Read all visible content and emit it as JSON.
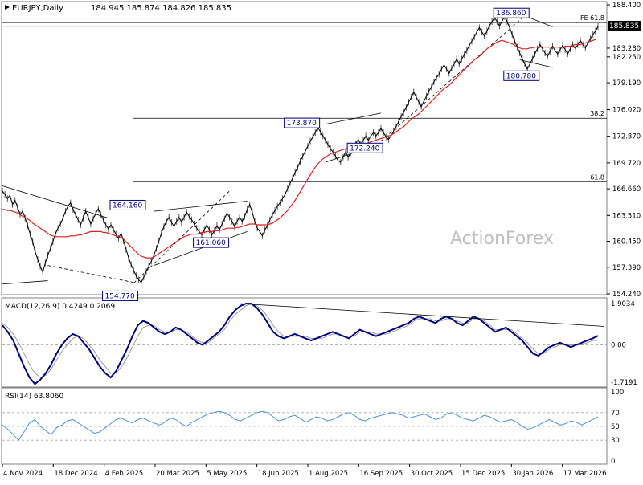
{
  "header": {
    "symbol": "EURJPY,Daily",
    "ohlc": "184.945 185.874 184.826 185.835"
  },
  "watermark": "ActionForex",
  "current_price": "185.835",
  "colors": {
    "price": "#000000",
    "sma": "#dd2222",
    "macd": "#000080",
    "signal": "#9a9a9a",
    "rsi": "#4a90e2",
    "label_border": "#000080",
    "label_text": "#000080",
    "grid": "#c8c8c8",
    "watermark": "#c0c0c0"
  },
  "chart_data": [
    {
      "type": "line",
      "title": "EURJPY,Daily",
      "ylim": [
        154.24,
        188.4
      ],
      "y_ticks": [
        "188.400",
        "185.835",
        "183.280",
        "182.250",
        "179.190",
        "176.020",
        "172.870",
        "169.720",
        "166.660",
        "163.510",
        "160.450",
        "157.390",
        "154.240"
      ],
      "x_ticks": [
        "4 Nov 2024",
        "18 Dec 2024",
        "4 Feb 2025",
        "20 Mar 2025",
        "5 May 2025",
        "18 Jun 2025",
        "1 Aug 2025",
        "16 Sep 2025",
        "30 Oct 2025",
        "15 Dec 2025",
        "30 Jan 2026",
        "17 Mar 2026"
      ],
      "series": [
        {
          "role": "price",
          "values": [
            166.4,
            166.0,
            165.5,
            165.9,
            164.8,
            165.3,
            164.5,
            163.6,
            164.0,
            163.2,
            162.3,
            161.3,
            160.4,
            159.2,
            158.3,
            157.5,
            156.8,
            157.9,
            158.8,
            159.6,
            160.4,
            161.3,
            162.0,
            162.5,
            163.2,
            164.0,
            164.6,
            165.0,
            164.2,
            163.6,
            163.0,
            162.4,
            163.2,
            164.0,
            163.3,
            162.5,
            163.1,
            163.8,
            164.3,
            163.6,
            163.0,
            162.4,
            161.9,
            162.4,
            161.8,
            161.3,
            160.8,
            161.4,
            160.5,
            159.5,
            158.5,
            157.7,
            157.0,
            156.4,
            155.9,
            155.6,
            156.2,
            156.9,
            157.5,
            158.1,
            158.8,
            159.6,
            160.5,
            161.4,
            162.2,
            162.8,
            163.3,
            162.7,
            162.2,
            162.8,
            163.3,
            162.7,
            163.3,
            163.9,
            163.4,
            163.0,
            162.5,
            162.0,
            161.6,
            161.2,
            161.8,
            162.4,
            161.8,
            161.2,
            161.7,
            162.3,
            161.8,
            162.5,
            163.1,
            163.8,
            163.3,
            162.8,
            162.2,
            162.8,
            163.3,
            162.8,
            163.4,
            164.2,
            164.8,
            163.9,
            162.8,
            162.0,
            161.6,
            161.1,
            161.8,
            162.3,
            163.0,
            163.6,
            164.1,
            164.6,
            165.0,
            165.5,
            166.0,
            166.7,
            167.3,
            167.9,
            168.6,
            169.2,
            169.9,
            170.5,
            171.1,
            171.7,
            172.3,
            172.8,
            173.3,
            173.9,
            173.4,
            172.9,
            172.4,
            171.9,
            171.4,
            171.0,
            170.5,
            170.0,
            169.8,
            170.4,
            171.0,
            170.4,
            170.9,
            171.5,
            172.0,
            172.5,
            171.9,
            172.4,
            172.9,
            172.4,
            172.9,
            173.3,
            172.9,
            173.3,
            173.8,
            173.3,
            172.8,
            172.5,
            172.9,
            173.5,
            174.0,
            174.6,
            175.2,
            175.7,
            176.3,
            176.9,
            177.5,
            178.1,
            177.5,
            176.9,
            176.4,
            177.0,
            177.6,
            178.2,
            178.7,
            179.3,
            179.8,
            180.2,
            180.8,
            181.3,
            180.8,
            180.3,
            180.9,
            181.4,
            182.0,
            181.4,
            182.0,
            182.5,
            183.0,
            183.6,
            184.1,
            184.6,
            185.2,
            185.7,
            185.2,
            184.7,
            185.3,
            185.9,
            186.4,
            186.9,
            186.4,
            185.9,
            186.5,
            187.0,
            186.4,
            185.7,
            184.9,
            184.1,
            183.4,
            182.7,
            182.0,
            181.4,
            180.8,
            181.4,
            182.0,
            182.6,
            183.2,
            183.7,
            183.2,
            182.7,
            182.3,
            182.9,
            183.5,
            183.0,
            182.6,
            183.1,
            183.6,
            183.1,
            182.6,
            183.2,
            183.7,
            183.2,
            183.7,
            184.2,
            183.7,
            183.3,
            183.9,
            184.4,
            184.9,
            185.3,
            185.835
          ]
        },
        {
          "role": "sma",
          "values": [
            164.2,
            164.2,
            164.1,
            164.1,
            164.0,
            163.9,
            163.8,
            163.6,
            163.4,
            163.3,
            163.1,
            162.9,
            162.6,
            162.4,
            162.2,
            162.0,
            161.8,
            161.6,
            161.4,
            161.2,
            161.1,
            161.0,
            161.0,
            161.0,
            161.0,
            161.0,
            161.0,
            161.1,
            161.1,
            161.1,
            161.2,
            161.2,
            161.3,
            161.4,
            161.5,
            161.6,
            161.6,
            161.6,
            161.6,
            161.6,
            161.5,
            161.5,
            161.4,
            161.3,
            161.2,
            161.1,
            161.0,
            160.9,
            160.7,
            160.4,
            160.1,
            159.8,
            159.5,
            159.2,
            158.9,
            158.7,
            158.6,
            158.5,
            158.5,
            158.5,
            158.6,
            158.8,
            159.0,
            159.2,
            159.4,
            159.6,
            159.8,
            160.0,
            160.2,
            160.4,
            160.6,
            160.8,
            161.0,
            161.1,
            161.2,
            161.3,
            161.3,
            161.3,
            161.4,
            161.5,
            161.5,
            161.6,
            161.6,
            161.6,
            161.7,
            161.7,
            161.7,
            161.8,
            161.9,
            162.0,
            162.0,
            162.0,
            162.0,
            162.1,
            162.1,
            162.2,
            162.3,
            162.4,
            162.5,
            162.5,
            162.5,
            162.4,
            162.4,
            162.4,
            162.4,
            162.4,
            162.5,
            162.6,
            162.8,
            163.0,
            163.2,
            163.5,
            163.8,
            164.1,
            164.5,
            164.9,
            165.3,
            165.8,
            166.3,
            166.8,
            167.3,
            167.8,
            168.3,
            168.8,
            169.2,
            169.6,
            169.9,
            170.2,
            170.4,
            170.6,
            170.8,
            170.9,
            171.0,
            171.1,
            171.2,
            171.3,
            171.4,
            171.5,
            171.6,
            171.6,
            171.7,
            171.8,
            171.8,
            171.9,
            172.0,
            172.1,
            172.2,
            172.3,
            172.4,
            172.5,
            172.6,
            172.7,
            172.8,
            172.9,
            173.0,
            173.2,
            173.4,
            173.6,
            173.8,
            174.0,
            174.3,
            174.6,
            174.9,
            175.1,
            175.3,
            175.5,
            175.8,
            176.1,
            176.4,
            176.7,
            177.0,
            177.3,
            177.6,
            177.9,
            178.2,
            178.5,
            178.7,
            178.9,
            179.2,
            179.5,
            179.8,
            180.1,
            180.4,
            180.7,
            181.0,
            181.3,
            181.6,
            181.9,
            182.1,
            182.3,
            182.6,
            182.9,
            183.2,
            183.4,
            183.6,
            183.8,
            184.0,
            184.1,
            184.2,
            184.1,
            184.0,
            183.9,
            183.8,
            183.6,
            183.4,
            183.3,
            183.2,
            183.2,
            183.2,
            183.3,
            183.3,
            183.4,
            183.4,
            183.4,
            183.4,
            183.4,
            183.4,
            183.4,
            183.4,
            183.4,
            183.4,
            183.4,
            183.4,
            183.5,
            183.5,
            183.5,
            183.6,
            183.7,
            183.7,
            183.7,
            183.8,
            183.9,
            184.0,
            184.1,
            184.2,
            184.3
          ]
        }
      ],
      "price_labels": [
        "186.860",
        "180.780",
        "173.870",
        "172.240",
        "164.160",
        "161.060",
        "154.770"
      ],
      "levels": [
        {
          "label": "FE 61.8",
          "value": 186.3
        },
        {
          "label": "38.2",
          "value": 175.0
        },
        {
          "label": "61.8",
          "value": 167.5
        }
      ]
    },
    {
      "type": "line",
      "title": "MACD(12,26,9) 0.4249 0.2069",
      "ylim": [
        -1.7191,
        1.9034
      ],
      "y_ticks": [
        "1.9034",
        "0.00",
        "-1.7191"
      ],
      "series": [
        {
          "role": "macd",
          "values": [
            0.9,
            0.6,
            0.2,
            -0.4,
            -1.0,
            -1.5,
            -1.8,
            -1.6,
            -1.3,
            -0.9,
            -0.4,
            0.0,
            0.3,
            0.5,
            0.4,
            0.1,
            -0.2,
            -0.6,
            -1.0,
            -1.3,
            -1.5,
            -1.2,
            -0.7,
            -0.2,
            0.4,
            0.9,
            1.1,
            1.0,
            0.8,
            0.6,
            0.5,
            0.6,
            0.8,
            0.7,
            0.5,
            0.3,
            0.1,
            0.0,
            0.2,
            0.4,
            0.6,
            0.9,
            1.3,
            1.6,
            1.8,
            1.9,
            1.9,
            1.7,
            1.4,
            1.0,
            0.6,
            0.4,
            0.3,
            0.4,
            0.5,
            0.4,
            0.3,
            0.2,
            0.3,
            0.4,
            0.5,
            0.6,
            0.5,
            0.4,
            0.3,
            0.5,
            0.7,
            0.6,
            0.5,
            0.4,
            0.5,
            0.6,
            0.7,
            0.8,
            0.9,
            1.0,
            1.2,
            1.3,
            1.2,
            1.1,
            1.0,
            1.2,
            1.3,
            1.2,
            1.0,
            0.9,
            1.1,
            1.3,
            1.2,
            1.0,
            0.8,
            0.6,
            0.7,
            0.8,
            0.6,
            0.4,
            0.2,
            -0.1,
            -0.4,
            -0.5,
            -0.3,
            -0.1,
            0.0,
            0.1,
            0.0,
            -0.1,
            0.0,
            0.1,
            0.2,
            0.3,
            0.42
          ]
        },
        {
          "role": "signal",
          "values": [
            1.0,
            0.8,
            0.5,
            0.1,
            -0.4,
            -0.9,
            -1.3,
            -1.5,
            -1.4,
            -1.1,
            -0.7,
            -0.3,
            0.0,
            0.3,
            0.4,
            0.3,
            0.0,
            -0.3,
            -0.7,
            -1.0,
            -1.3,
            -1.3,
            -1.0,
            -0.6,
            -0.1,
            0.4,
            0.8,
            0.9,
            0.9,
            0.7,
            0.6,
            0.6,
            0.7,
            0.7,
            0.6,
            0.4,
            0.2,
            0.1,
            0.1,
            0.3,
            0.5,
            0.7,
            1.1,
            1.4,
            1.6,
            1.8,
            1.9,
            1.8,
            1.6,
            1.3,
            0.9,
            0.6,
            0.4,
            0.4,
            0.4,
            0.4,
            0.4,
            0.3,
            0.3,
            0.3,
            0.4,
            0.5,
            0.5,
            0.4,
            0.4,
            0.4,
            0.6,
            0.6,
            0.6,
            0.5,
            0.5,
            0.5,
            0.6,
            0.7,
            0.8,
            0.9,
            1.1,
            1.2,
            1.2,
            1.2,
            1.1,
            1.1,
            1.2,
            1.2,
            1.1,
            1.0,
            1.0,
            1.2,
            1.2,
            1.1,
            0.9,
            0.7,
            0.7,
            0.7,
            0.7,
            0.5,
            0.3,
            0.1,
            -0.2,
            -0.4,
            -0.4,
            -0.2,
            -0.1,
            0.0,
            0.0,
            0.0,
            0.0,
            0.0,
            0.1,
            0.2,
            0.21
          ]
        }
      ]
    },
    {
      "type": "line",
      "title": "RSI(14) 63.8060",
      "ylim": [
        0,
        100
      ],
      "y_ticks": [
        "100",
        "70",
        "50",
        "30",
        "0"
      ],
      "series": [
        {
          "role": "rsi",
          "values": [
            52,
            46,
            38,
            30,
            42,
            55,
            60,
            50,
            44,
            38,
            48,
            52,
            58,
            60,
            55,
            50,
            45,
            40,
            42,
            48,
            54,
            60,
            62,
            58,
            55,
            60,
            62,
            58,
            55,
            52,
            56,
            62,
            60,
            54,
            50,
            56,
            60,
            64,
            68,
            70,
            72,
            70,
            66,
            60,
            58,
            62,
            66,
            70,
            72,
            70,
            64,
            58,
            60,
            64,
            66,
            62,
            56,
            60,
            64,
            62,
            58,
            60,
            64,
            68,
            70,
            66,
            60,
            58,
            62,
            64,
            66,
            68,
            70,
            68,
            66,
            62,
            64,
            66,
            68,
            64,
            60,
            62,
            68,
            70,
            66,
            62,
            60,
            58,
            62,
            66,
            64,
            60,
            56,
            58,
            60,
            56,
            50,
            46,
            48,
            52,
            56,
            60,
            56,
            52,
            54,
            58,
            56,
            52,
            56,
            60,
            63.8
          ]
        }
      ]
    }
  ]
}
